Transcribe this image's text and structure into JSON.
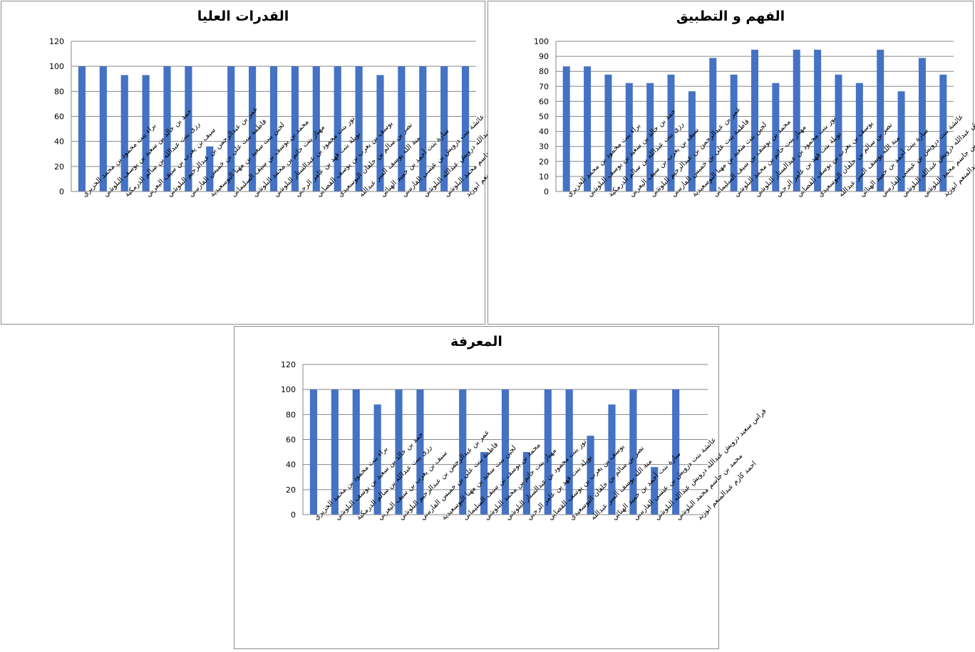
{
  "colors": {
    "bar": "#4472c4",
    "grid": "#868686",
    "axis": "#868686"
  },
  "chart_data": [
    {
      "type": "bar",
      "title": "القدرات العليا",
      "ylim": [
        0,
        120
      ],
      "yticks": [
        0,
        20,
        40,
        60,
        80,
        100,
        120
      ],
      "grid": true,
      "legend": "none",
      "categories": [
        "براء بنت محمود بن محمد الخزيري",
        "حمد بن خالد بن سعيد بن يوسف البلوشي",
        "رزى بنت عبدالله بن سالم الدرمكية",
        "سيف بن يعرب بن سيف اليعربي",
        "عمر بن عبدالرحمن بن عبدالرحيم البلوشي",
        "فاطمة بنت علي بن خميس الفارسي",
        "لجين بنت سعيد بن مهنا البوسعيدية",
        "محمد بن يوسف بن سيف السليمانى",
        "مهناز بنت حاتم بن محمد البلوشي",
        "نور بنت محمود بن عبدالستار البلوشي",
        "نويلة بنت فهد بن عامر الرحبي",
        "يوسف بن يعرب بن يوسف القصابي",
        "نصر بن سالم بن خلفان البوسعيدي",
        "منة الله يوسف السر عبدالله",
        "سارة بنت أحمد بن حميد الهنائي",
        "عائشة بنت درويش بن عيسى الفارسي",
        "فراس سعيد درويش عبدالله درويش عبدالله البلوشي",
        "محمد بن جاسم محمد البلوشي",
        "احمد كارم عبدالمنعم ابوزيد"
      ],
      "values": [
        100,
        100,
        93,
        93,
        100,
        100,
        36,
        100,
        100,
        100,
        100,
        100,
        100,
        100,
        93,
        100,
        100,
        100,
        100
      ]
    },
    {
      "type": "bar",
      "title": "الفهم و التطبيق",
      "ylim": [
        0,
        100
      ],
      "yticks": [
        0,
        10,
        20,
        30,
        40,
        50,
        60,
        70,
        80,
        90,
        100
      ],
      "grid": true,
      "legend": "none",
      "categories": [
        "براء بنت محمود بن محمد الخزيري",
        "حمد بن خالد بن سعيد بن يوسف البلوشي",
        "رزى بنت عبدالله بن سالم الدرمكية",
        "سيف بن يعرب بن سيف اليعربي",
        "عمر بن عبدالرحمن بن عبدالرحيم البلوشي",
        "فاطمة بنت علي بن خميس الفارسي",
        "لجين بنت سعيد بن مهنا البوسعيدية",
        "محمد بن يوسف بن سيف السليمانى",
        "مهناز بنت حاتم بن محمد البلوشي",
        "نور بنت محمود بن عبدالستار البلوشي",
        "نويلة بنت فهد بن عامر الرحبي",
        "يوسف بن يعرب بن يوسف القصابي",
        "نصر بن سالم بن خلفان البوسعيدي",
        "منة الله يوسف السر عبدالله",
        "سارة بنت أحمد بن حميد الهنائي",
        "عائشة بنت درويش بن عيسى الفارسي",
        "فراس سعيد درويش عبدالله درويش عبدالله البلوشي",
        "محمد بن جاسم محمد البلوشي",
        "احمد كارم عبدالمنعم ابوزيد"
      ],
      "values": [
        83.3,
        83.3,
        77.8,
        72.2,
        72.2,
        77.8,
        66.7,
        88.9,
        77.8,
        94.4,
        72.2,
        94.4,
        94.4,
        77.8,
        72.2,
        94.4,
        66.7,
        88.9,
        77.8
      ]
    },
    {
      "type": "bar",
      "title": "المعرفة",
      "ylim": [
        0,
        120
      ],
      "yticks": [
        0,
        20,
        40,
        60,
        80,
        100,
        120
      ],
      "grid": true,
      "legend": "none",
      "categories": [
        "براء بنت محمود بن محمد الخزيري",
        "حمد بن خالد بن سعيد بن يوسف البلوشي",
        "رزى بنت عبدالله بن سالم الدرمكية",
        "سيف بن يعرب بن سيف اليعربي",
        "عمر بن عبدالرحمن بن عبدالرحيم البلوشي",
        "فاطمة بنت علي بن خميس الفارسي",
        "لجين بنت سعيد بن مهنا البوسعيدية",
        "محمد بن يوسف بن سيف السليمانى",
        "مهناز بنت حاتم بن محمد البلوشي",
        "نور بنت محمود بن عبدالستار البلوشي",
        "نويلة بنت فهد بن عامر الرحبي",
        "يوسف بن يعرب بن يوسف القصابي",
        "نصر بن سالم بن خلفان البوسعيدي",
        "منة الله يوسف السر عبدالله",
        "سارة بنت أحمد بن حميد الهنائي",
        "عائشة بنت درويش بن عيسى الفارسي",
        "فراس سعيد درويش عبدالله درويش عبدالله البلوشي",
        "محمد بن جاسم محمد البلوشي",
        "احمد كارم عبدالمنعم ابوزيد"
      ],
      "values": [
        100,
        100,
        100,
        88,
        100,
        100,
        0,
        100,
        50,
        100,
        50,
        100,
        100,
        63,
        88,
        100,
        38,
        100,
        0
      ]
    }
  ]
}
